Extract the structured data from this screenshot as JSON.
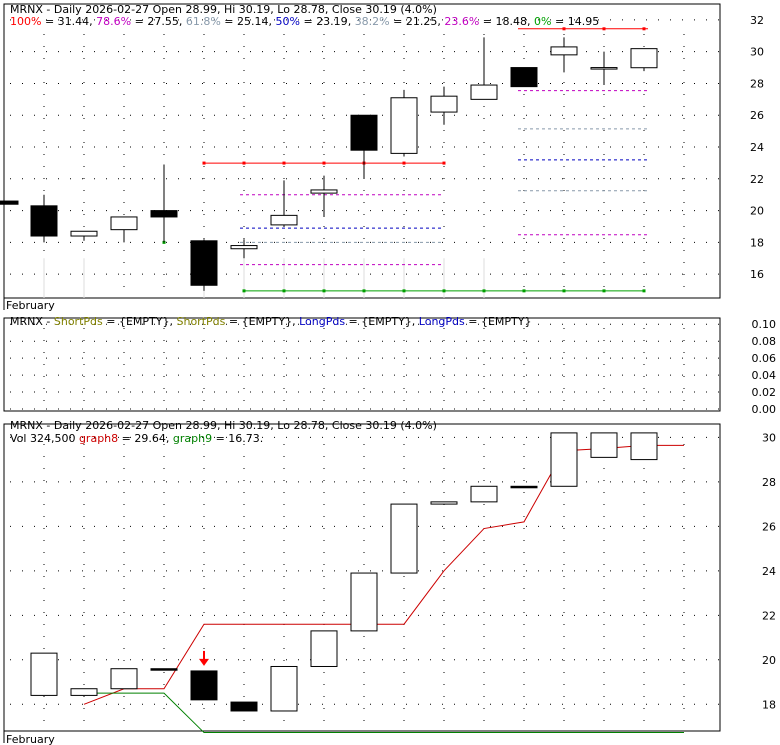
{
  "colors": {
    "fib_100": "#ff0000",
    "fib_786": "#c000c0",
    "fib_618": "#8899aa",
    "fib_50": "#0000c0",
    "fib_382": "#8899aa",
    "fib_236": "#c000c0",
    "fib_0": "#00a000",
    "short": "#808000",
    "long": "#0000c0",
    "graph8": "#cc0000",
    "graph9": "#008000"
  },
  "panel1": {
    "ticker": "MRNX",
    "header": "MRNX - Daily 2026-02-27 Open 28.99, Hi 30.19, Lo 28.78, Close 30.19 (4.0%)",
    "fib": [
      {
        "label": "100%",
        "value": "31.44"
      },
      {
        "label": "78.6%",
        "value": "27.55"
      },
      {
        "label": "61.8%",
        "value": "25.14"
      },
      {
        "label": "50%",
        "value": "23.19"
      },
      {
        "label": "38.2%",
        "value": "21.25"
      },
      {
        "label": "23.6%",
        "value": "18.48"
      },
      {
        "label": "0%",
        "value": "14.95"
      }
    ],
    "month_label": "February"
  },
  "panel2": {
    "ticker": "MRNX",
    "items": [
      {
        "label": "ShortPds",
        "value": "{EMPTY}"
      },
      {
        "label": "ShortPds",
        "value": "{EMPTY}"
      },
      {
        "label": "LongPds",
        "value": "{EMPTY}"
      },
      {
        "label": "LongPds",
        "value": "{EMPTY}"
      }
    ]
  },
  "panel3": {
    "header": "MRNX - Daily 2026-02-27 Open 28.99, Hi 30.19, Lo 28.78, Close 30.19 (4.0%)",
    "vol_label": "Vol 324,500",
    "graph8_label": "graph8",
    "graph8_value": "29.64",
    "graph9_label": "graph9",
    "graph9_value": "16.73",
    "month_label": "February"
  },
  "chart_data": [
    {
      "type": "candlestick",
      "x_label": "February",
      "y_ticks": [
        16,
        18,
        20,
        22,
        24,
        26,
        28,
        30,
        32
      ],
      "ylim": [
        14.5,
        33
      ],
      "candles": [
        {
          "o": 20.6,
          "h": 20.6,
          "l": 20.4,
          "c": 20.4
        },
        {
          "o": 20.3,
          "h": 21.0,
          "l": 18.0,
          "c": 18.4
        },
        {
          "o": 18.4,
          "h": 18.7,
          "l": 18.1,
          "c": 18.7
        },
        {
          "o": 18.8,
          "h": 19.6,
          "l": 18.0,
          "c": 19.6
        },
        {
          "o": 20.0,
          "h": 22.9,
          "l": 18.0,
          "c": 19.6
        },
        {
          "o": 18.1,
          "h": 18.2,
          "l": 14.95,
          "c": 15.3
        },
        {
          "o": 17.6,
          "h": 18.2,
          "l": 17.0,
          "c": 17.8
        },
        {
          "o": 19.1,
          "h": 21.9,
          "l": 19.0,
          "c": 19.7
        },
        {
          "o": 21.1,
          "h": 22.2,
          "l": 19.6,
          "c": 21.3
        },
        {
          "o": 26.0,
          "h": 26.0,
          "l": 22.0,
          "c": 23.8
        },
        {
          "o": 23.6,
          "h": 27.6,
          "l": 23.4,
          "c": 27.1
        },
        {
          "o": 26.2,
          "h": 27.8,
          "l": 25.4,
          "c": 27.2
        },
        {
          "o": 27.0,
          "h": 30.9,
          "l": 27.0,
          "c": 27.9
        },
        {
          "o": 29.0,
          "h": 29.0,
          "l": 27.8,
          "c": 27.8
        },
        {
          "o": 29.8,
          "h": 30.9,
          "l": 28.7,
          "c": 30.3
        },
        {
          "o": 29.0,
          "h": 30.0,
          "l": 27.9,
          "c": 29.0
        },
        {
          "o": 28.99,
          "h": 30.19,
          "l": 28.78,
          "c": 30.19
        }
      ],
      "fib_levels": {
        "100": 31.44,
        "78.6": 27.55,
        "61.8": 25.14,
        "50": 23.19,
        "38.2": 21.25,
        "23.6": 18.48,
        "0": 14.95
      },
      "red_line_23": {
        "value": 22.99,
        "from": 5,
        "to": 11
      },
      "grid": true
    },
    {
      "type": "line",
      "y_ticks": [
        0.0,
        0.02,
        0.04,
        0.06,
        0.08,
        0.1
      ],
      "tick_labels": [
        "0.00",
        "0.02",
        "0.04",
        "0.06",
        "0.08",
        "0.10"
      ],
      "ylim": [
        0,
        0.105
      ],
      "series": [],
      "grid": true
    },
    {
      "type": "candlestick",
      "x_label": "February",
      "y_ticks": [
        18,
        20,
        22,
        24,
        26,
        28,
        30
      ],
      "ylim": [
        16.8,
        30.6
      ],
      "bodies": [
        {
          "o": 18.4,
          "c": 20.3,
          "dir": "up"
        },
        {
          "o": 18.4,
          "c": 18.7,
          "dir": "up"
        },
        {
          "o": 18.7,
          "c": 19.6,
          "dir": "up"
        },
        {
          "o": 19.6,
          "c": 19.6,
          "dir": "flat"
        },
        {
          "o": 19.5,
          "c": 18.2,
          "dir": "down"
        },
        {
          "o": 18.1,
          "c": 17.7,
          "dir": "down"
        },
        {
          "o": 17.7,
          "c": 19.7,
          "dir": "up"
        },
        {
          "o": 19.7,
          "c": 21.3,
          "dir": "up"
        },
        {
          "o": 21.3,
          "c": 23.9,
          "dir": "up"
        },
        {
          "o": 23.9,
          "c": 27.0,
          "dir": "up"
        },
        {
          "o": 27.0,
          "c": 27.1,
          "dir": "up"
        },
        {
          "o": 27.1,
          "c": 27.8,
          "dir": "up"
        },
        {
          "o": 27.8,
          "c": 27.8,
          "dir": "flat"
        },
        {
          "o": 27.8,
          "c": 30.2,
          "dir": "up"
        },
        {
          "o": 29.1,
          "c": 30.2,
          "dir": "up"
        },
        {
          "o": 29.0,
          "c": 30.2,
          "dir": "up"
        }
      ],
      "series": [
        {
          "name": "graph8",
          "points": [
            [
              1,
              18.0
            ],
            [
              2,
              18.7
            ],
            [
              3,
              18.7
            ],
            [
              4,
              21.6
            ],
            [
              5,
              21.6
            ],
            [
              6,
              21.6
            ],
            [
              7,
              21.6
            ],
            [
              8,
              21.6
            ],
            [
              9,
              21.6
            ],
            [
              10,
              24.0
            ],
            [
              11,
              25.9
            ],
            [
              12,
              26.2
            ],
            [
              13,
              29.4
            ],
            [
              14,
              29.5
            ],
            [
              15,
              29.64
            ],
            [
              16,
              29.64
            ]
          ]
        },
        {
          "name": "graph9",
          "points": [
            [
              1,
              18.5
            ],
            [
              2,
              18.5
            ],
            [
              3,
              18.5
            ],
            [
              4,
              16.73
            ],
            [
              5,
              16.73
            ],
            [
              6,
              16.73
            ],
            [
              7,
              16.73
            ],
            [
              8,
              16.73
            ],
            [
              9,
              16.73
            ],
            [
              10,
              16.73
            ],
            [
              11,
              16.73
            ],
            [
              12,
              16.73
            ],
            [
              13,
              16.73
            ],
            [
              14,
              16.73
            ],
            [
              15,
              16.73
            ],
            [
              16,
              16.73
            ]
          ]
        }
      ],
      "arrow_index": 4,
      "grid": true
    }
  ]
}
